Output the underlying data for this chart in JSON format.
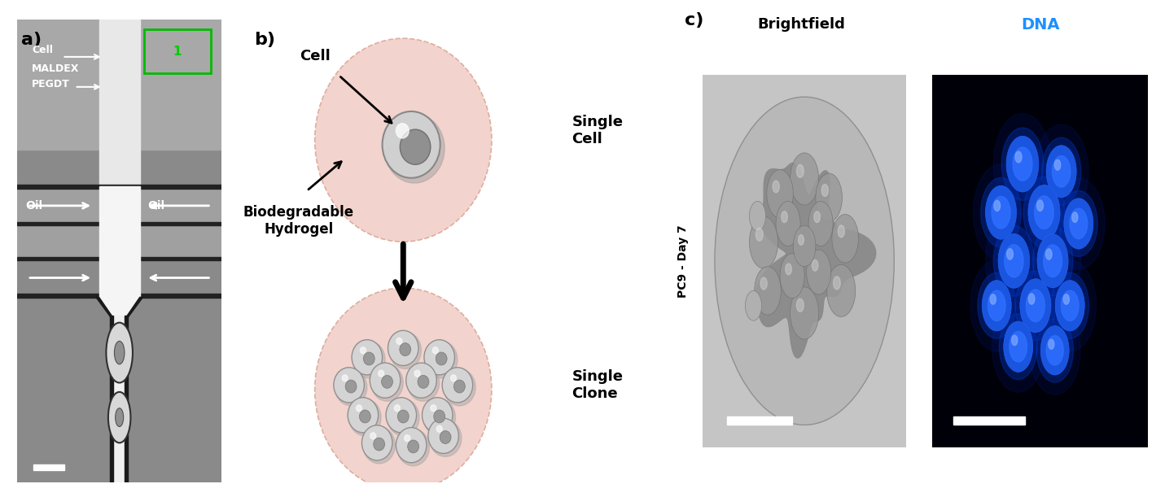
{
  "panel_labels": [
    "a)",
    "b)",
    "c)"
  ],
  "panel_label_fontsize": 16,
  "panel_label_fontweight": "bold",
  "bg_color": "#ffffff",
  "b_labels": {
    "cell": "Cell",
    "single_cell": "Single\nCell",
    "biodegradable": "Biodegradable\nHydrogel",
    "single_clone": "Single\nClone"
  },
  "c_labels": {
    "brightfield": "Brightfield",
    "dna": "DNA",
    "rotated": "PC9 - Day 7",
    "brightfield_color": "#000000",
    "dna_color": "#1e90ff"
  },
  "a_labels": {
    "cell": "Cell",
    "maldex": "MALDEX",
    "pegdt": "PEGDT",
    "oil_left": "Oil",
    "oil_right": "Oil",
    "number": "1"
  },
  "hydrogel_color": "#f2cfc8",
  "hydrogel_edge_color": "#dba898",
  "cell_body_color": "#c8c8c8",
  "cell_nucleus_color": "#888888",
  "clone_cell_color": "#d4d4d4",
  "clone_cell_edge_color": "#909090",
  "a_bg_dark": "#7a7a7a",
  "a_bg_light": "#b5b5b5",
  "a_channel_white": "#f0f0f0",
  "a_channel_dark": "#111111"
}
